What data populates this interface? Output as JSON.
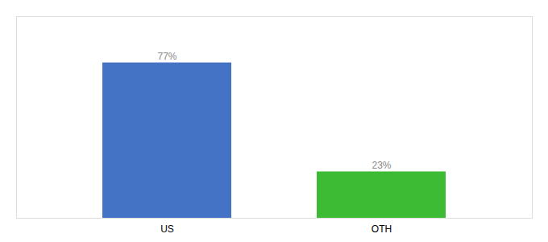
{
  "chart_data": {
    "type": "bar",
    "categories": [
      "US",
      "OTH"
    ],
    "values": [
      77,
      23
    ],
    "colors": [
      "#4472c4",
      "#3dbb35"
    ],
    "value_labels": [
      "77%",
      "23%"
    ],
    "data_labels": true,
    "ylim": [
      0,
      100
    ],
    "tick_labels": "x",
    "grid": false
  }
}
